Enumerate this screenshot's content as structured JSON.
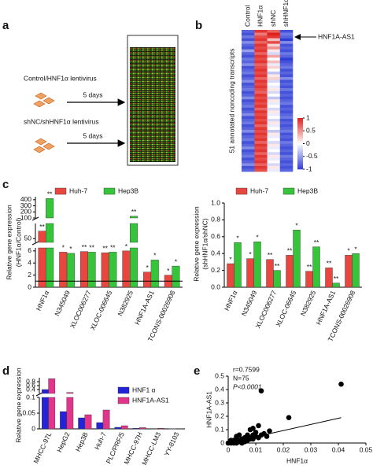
{
  "panels": [
    "a",
    "b",
    "c",
    "d",
    "e"
  ],
  "diagram": {
    "step1_label": "Control/HNF1α lentivirus",
    "step1_time": "5 days",
    "step2_label": "shNC/shHNF1α lentivirus",
    "step2_time": "5 days"
  },
  "chart_data": [
    {
      "type": "heatmap",
      "columns": [
        "Control",
        "HNF1α",
        "shNC",
        "shHNF1α"
      ],
      "ylabel": "51 annotated noncoding transcripts",
      "annotation": "HNF1A-AS1",
      "clim": [
        -1,
        1
      ],
      "colorbar_ticks": [
        1,
        0.5,
        0,
        -0.5,
        -1
      ],
      "colors": [
        "#2f3fd6",
        "#ffffff",
        "#e0201c"
      ],
      "values": [
        [
          -0.8,
          0.9,
          0.7,
          -0.9
        ],
        [
          -0.9,
          0.6,
          1.0,
          -0.7
        ],
        [
          -0.7,
          0.8,
          0.9,
          -0.8
        ],
        [
          -0.9,
          0.9,
          0.3,
          -1.0
        ],
        [
          -0.6,
          0.7,
          0.8,
          -0.6
        ],
        [
          -0.8,
          0.9,
          0.2,
          -0.9
        ],
        [
          -0.9,
          0.8,
          0.5,
          -0.8
        ],
        [
          -0.5,
          0.9,
          0.1,
          -0.9
        ],
        [
          -0.8,
          0.7,
          -0.2,
          -0.7
        ],
        [
          -0.9,
          0.9,
          0.4,
          -0.8
        ],
        [
          -0.7,
          0.8,
          0.0,
          -1.0
        ],
        [
          -0.8,
          0.9,
          0.3,
          -0.9
        ],
        [
          -0.6,
          0.7,
          -0.1,
          -0.8
        ],
        [
          -0.9,
          0.8,
          0.2,
          -0.7
        ],
        [
          -0.8,
          0.9,
          0.0,
          -0.9
        ],
        [
          -0.7,
          0.8,
          -0.3,
          -0.8
        ],
        [
          -0.9,
          0.9,
          0.1,
          -0.9
        ],
        [
          -0.8,
          0.7,
          0.2,
          -0.6
        ],
        [
          -0.6,
          0.9,
          -0.2,
          -0.9
        ],
        [
          -0.9,
          0.8,
          0.0,
          -0.8
        ],
        [
          -0.8,
          0.9,
          -0.1,
          -0.9
        ],
        [
          -0.7,
          0.8,
          0.1,
          -0.7
        ],
        [
          -0.9,
          0.7,
          -0.2,
          -0.9
        ],
        [
          -0.8,
          0.9,
          0.0,
          -0.8
        ],
        [
          -0.6,
          0.8,
          -0.3,
          -0.9
        ],
        [
          -0.9,
          0.9,
          0.1,
          -0.8
        ],
        [
          -0.8,
          0.8,
          -0.1,
          -0.7
        ],
        [
          -0.7,
          0.9,
          0.0,
          -0.9
        ],
        [
          -0.9,
          0.7,
          -0.2,
          -0.8
        ],
        [
          -0.8,
          0.9,
          0.1,
          -0.9
        ],
        [
          -0.6,
          0.8,
          -0.1,
          -0.8
        ],
        [
          -0.9,
          0.9,
          0.0,
          -0.7
        ],
        [
          -0.8,
          0.8,
          -0.2,
          -0.9
        ],
        [
          -0.7,
          0.9,
          0.1,
          -0.8
        ],
        [
          -0.9,
          0.7,
          -0.1,
          -0.9
        ],
        [
          -0.8,
          0.9,
          0.0,
          -0.8
        ],
        [
          -0.6,
          0.8,
          -0.3,
          -0.7
        ],
        [
          -0.9,
          0.9,
          0.1,
          -0.9
        ],
        [
          -0.8,
          0.8,
          -0.1,
          -0.8
        ],
        [
          -0.7,
          0.9,
          0.0,
          -0.9
        ],
        [
          -0.9,
          0.7,
          -0.2,
          -0.7
        ],
        [
          -0.8,
          0.9,
          0.1,
          -0.8
        ],
        [
          -0.6,
          0.8,
          -0.1,
          -0.9
        ],
        [
          -0.9,
          0.9,
          0.0,
          -0.8
        ],
        [
          -0.8,
          0.7,
          -0.2,
          -0.9
        ],
        [
          -0.7,
          0.9,
          0.1,
          -0.7
        ],
        [
          -0.9,
          0.8,
          -0.1,
          -0.8
        ],
        [
          -0.8,
          0.9,
          0.0,
          -0.9
        ],
        [
          -0.6,
          0.7,
          -0.2,
          -0.8
        ],
        [
          -0.9,
          0.9,
          0.1,
          -0.9
        ],
        [
          -0.8,
          0.8,
          -0.1,
          -0.8
        ]
      ]
    },
    {
      "type": "bar",
      "ylabel": [
        "Relative gene expression",
        "(HNF1α/Control)"
      ],
      "categories": [
        "HNF1α",
        "N345049",
        "XLOC006277",
        "XLOC-006645",
        "N382925",
        "HNF1A-AS1",
        "TCONS-00026908"
      ],
      "segments": [
        {
          "ylim": [
            0,
            6.5
          ],
          "yticks": [
            0,
            2,
            4,
            6
          ]
        },
        {
          "ylim": [
            40,
            90
          ],
          "yticks": [
            50
          ]
        },
        {
          "ylim": [
            100,
            450
          ],
          "yticks": [
            100,
            200,
            300,
            400
          ]
        }
      ],
      "reference_line": 1,
      "series": [
        {
          "name": "Huh-7",
          "color": "#e8463f",
          "values": [
            70,
            5.8,
            5.9,
            5.7,
            6,
            2.5,
            2.0
          ],
          "significance": [
            "**",
            "*",
            "**",
            "**",
            "*",
            "*",
            "*"
          ]
        },
        {
          "name": "Hep3B",
          "color": "#35c43a",
          "values": [
            420,
            5.6,
            5.8,
            5.8,
            130,
            4.5,
            3.5
          ],
          "significance": [
            "**",
            "*",
            "**",
            "**",
            "**",
            "*",
            "*"
          ]
        }
      ]
    },
    {
      "type": "bar",
      "ylabel": [
        "Relative gene expression",
        "(shHNF1α/shNC)"
      ],
      "categories": [
        "HNF1α",
        "N345049",
        "XLOC006277",
        "XLOC-06645",
        "N382925",
        "HNF1A-AS1",
        "TCONS-00026908"
      ],
      "ylim": [
        0,
        1.0
      ],
      "yticks": [
        {
          "value": 0,
          "label": "0.0"
        },
        0.2,
        0.4,
        0.6,
        0.8,
        {
          "value": 1.0,
          "label": "1.0"
        }
      ],
      "series": [
        {
          "name": "Huh-7",
          "color": "#e8463f",
          "values": [
            0.28,
            0.34,
            0.33,
            0.38,
            0.19,
            0.23,
            0.38
          ],
          "significance": [
            "*",
            "*",
            "**",
            "**",
            "**",
            "**",
            "*"
          ]
        },
        {
          "name": "Hep3B",
          "color": "#35c43a",
          "values": [
            0.53,
            0.54,
            0.2,
            0.68,
            0.48,
            0.05,
            0.4
          ],
          "significance": [
            "*",
            "*",
            "**",
            "*",
            "**",
            "**",
            "*"
          ]
        }
      ]
    },
    {
      "type": "bar",
      "ylabel": [
        "Relative gene expression"
      ],
      "categories": [
        "MHCC-97L",
        "HepG2",
        "Hep3B",
        "Huh-7",
        "PLC/PRF/5",
        "MHCC-97H",
        "MHCC-LM3",
        "YY-8103"
      ],
      "segments": [
        {
          "ylim": [
            0,
            0.1
          ],
          "yticks": [
            0,
            0.05,
            0.1
          ]
        },
        {
          "ylim": [
            0.2,
            1.0
          ],
          "yticks": [
            0.4,
            0.6,
            0.8
          ]
        }
      ],
      "series": [
        {
          "name": "HNF1 α",
          "color": "#2323d8",
          "values": [
            0.4,
            0.055,
            0.035,
            0.02,
            0.005,
            0.002,
            0.001,
            0.0005
          ]
        },
        {
          "name": "HNF1A-AS1",
          "color": "#e0358a",
          "values": [
            0.95,
            0.25,
            0.045,
            0.06,
            0.01,
            0.004,
            0.002,
            0.001
          ]
        }
      ]
    },
    {
      "type": "scatter",
      "xlabel": "HNF1α",
      "ylabel": "HNF1A-AS1",
      "annotations": [
        "r=0.7599",
        "N=75",
        "P<0.0001"
      ],
      "xlim": [
        0,
        0.05
      ],
      "xticks": [
        0,
        0.01,
        0.02,
        0.03,
        0.04,
        0.05
      ],
      "ylim": [
        0,
        0.5
      ],
      "yticks": [
        0,
        0.1,
        0.2,
        0.3,
        0.4,
        0.5
      ],
      "color": "#000000",
      "trendline": {
        "x": [
          0.002,
          0.041
        ],
        "y": [
          0.01,
          0.19
        ]
      },
      "x": [
        0.041,
        0.012,
        0.022,
        0.011,
        0.015,
        0.008,
        0.013,
        0.01,
        0.009,
        0.003,
        0.004,
        0.005,
        0.006,
        0.007,
        0.002,
        0.001,
        0.003,
        0.004,
        0.005,
        0.006,
        0.007,
        0.008,
        0.009,
        0.01,
        0.011,
        0.002,
        0.003,
        0.001,
        0.004,
        0.005,
        0.006,
        0.0,
        0.001,
        0.002,
        0.003,
        0.012,
        0.014,
        0.009,
        0.008,
        0.007
      ],
      "values": [
        0.44,
        0.39,
        0.19,
        0.13,
        0.09,
        0.1,
        0.07,
        0.08,
        0.06,
        0.05,
        0.06,
        0.03,
        0.04,
        0.05,
        0.02,
        0.01,
        0.03,
        0.02,
        0.02,
        0.03,
        0.02,
        0.04,
        0.03,
        0.05,
        0.04,
        0.0,
        0.01,
        0.02,
        0.01,
        0.0,
        0.01,
        0.0,
        0.0,
        0.01,
        0.0,
        0.06,
        0.05,
        0.11,
        0.03,
        0.06
      ]
    }
  ]
}
